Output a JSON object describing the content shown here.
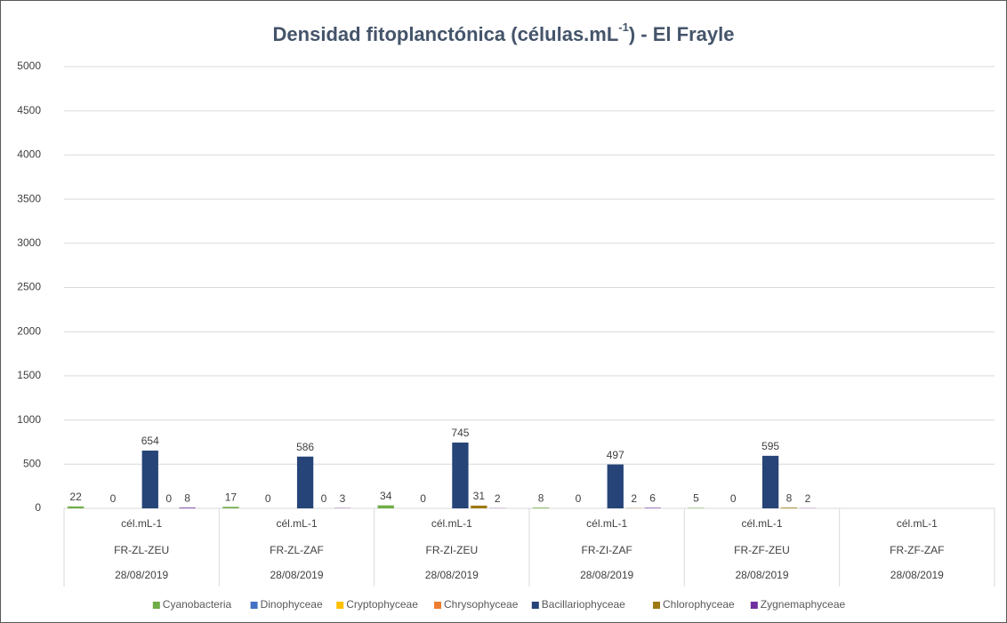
{
  "chart_data": {
    "type": "bar",
    "title": [
      "Densidad fitoplanctónica (células.mL",
      "-1",
      ") - El Frayle"
    ],
    "categories": [
      "FR-ZL-ZEU",
      "FR-ZL-ZAF",
      "FR-ZI-ZEU",
      "FR-ZI-ZAF",
      "FR-ZF-ZEU",
      "FR-ZF-ZAF"
    ],
    "category_units": [
      "cél.mL-1",
      "cél.mL-1",
      "cél.mL-1",
      "cél.mL-1",
      "cél.mL-1",
      "cél.mL-1"
    ],
    "category_dates": [
      "28/08/2019",
      "28/08/2019",
      "28/08/2019",
      "28/08/2019",
      "28/08/2019",
      "28/08/2019"
    ],
    "series": [
      {
        "name": "Cyanobacteria",
        "color": "#70ad47",
        "values": [
          22,
          17,
          34,
          8,
          5,
          null
        ]
      },
      {
        "name": "Dinophyceae",
        "color": "#4472c4",
        "values": [
          null,
          null,
          null,
          null,
          null,
          null
        ]
      },
      {
        "name": "Cryptophyceae",
        "color": "#ffc000",
        "values": [
          0,
          0,
          0,
          0,
          0,
          null
        ]
      },
      {
        "name": "Chrysophyceae",
        "color": "#ed7d31",
        "values": [
          null,
          null,
          null,
          null,
          null,
          null
        ]
      },
      {
        "name": "Bacillariophyceae",
        "color": "#264478",
        "values": [
          654,
          586,
          745,
          497,
          595,
          null
        ]
      },
      {
        "name": "Chlorophyceae",
        "color": "#9e7a13",
        "values": [
          0,
          0,
          31,
          2,
          8,
          null
        ]
      },
      {
        "name": "Zygnemaphyceae",
        "color": "#7030a0",
        "values": [
          8,
          3,
          2,
          6,
          2,
          null
        ]
      }
    ],
    "ylim": [
      0,
      5000
    ],
    "yticks": [
      0,
      500,
      1000,
      1500,
      2000,
      2500,
      3000,
      3500,
      4000,
      4500,
      5000
    ],
    "grid": true,
    "legend": "bottom"
  }
}
